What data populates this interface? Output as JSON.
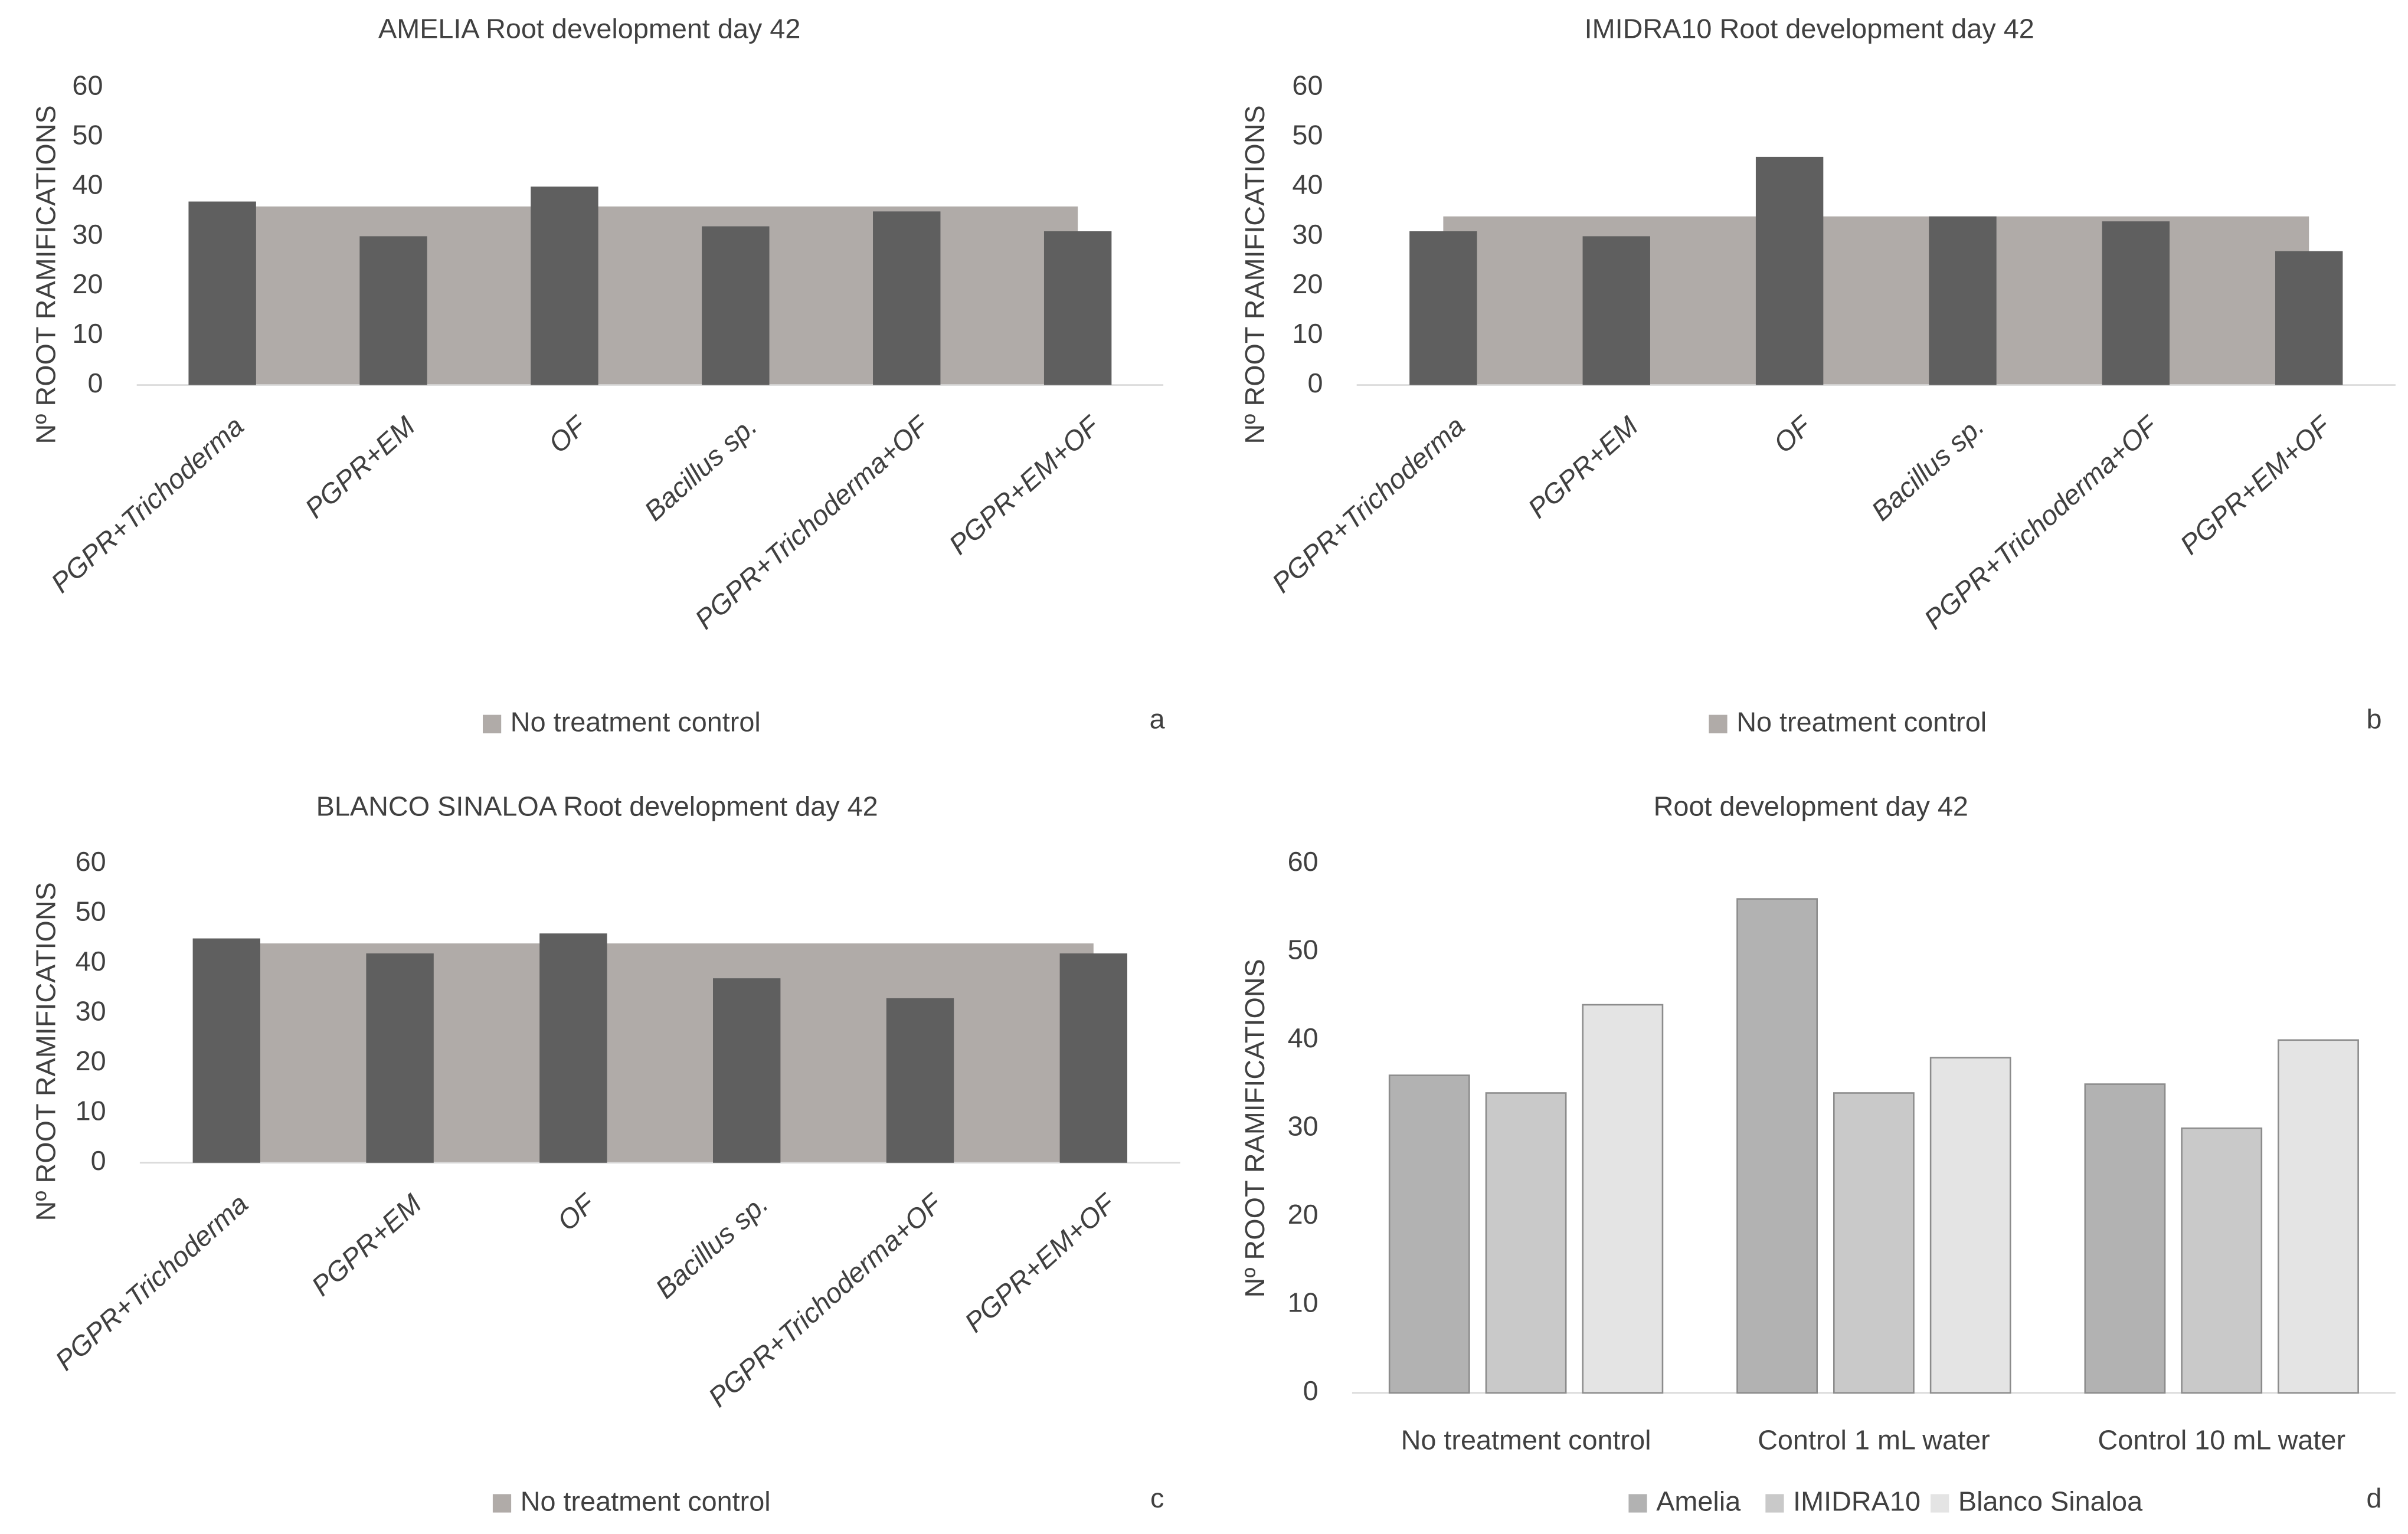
{
  "chart_data": [
    {
      "type": "bar",
      "title": "AMELIA  Root development  day 42",
      "panel_label": "a",
      "y_label": "Nº ROOT RAMIFICATIONS",
      "categories": [
        "PGPR+Trichoderma",
        "PGPR+EM",
        "OF",
        "Bacillus sp.",
        "PGPR+Trichoderma+OF",
        "PGPR+EM+OF"
      ],
      "values": [
        37,
        30,
        40,
        32,
        35,
        31
      ],
      "color": "#5f5f5f",
      "control": {
        "name": "No treatment control",
        "value": 36,
        "color": "#b0aba8"
      },
      "ylim": [
        0,
        60
      ],
      "yticks": [
        0,
        10,
        20,
        30,
        40,
        50,
        60
      ]
    },
    {
      "type": "bar",
      "title": "IMIDRA10  Root development  day 42",
      "panel_label": "b",
      "y_label": "Nº ROOT RAMIFICATIONS",
      "categories": [
        "PGPR+Trichoderma",
        "PGPR+EM",
        "OF",
        "Bacillus sp.",
        "PGPR+Trichoderma+OF",
        "PGPR+EM+OF"
      ],
      "values": [
        31,
        30,
        46,
        34,
        33,
        27
      ],
      "color": "#5f5f5f",
      "control": {
        "name": "No treatment control",
        "value": 34,
        "color": "#b0aba8"
      },
      "ylim": [
        0,
        60
      ],
      "yticks": [
        0,
        10,
        20,
        30,
        40,
        50,
        60
      ]
    },
    {
      "type": "bar",
      "title": "BLANCO  SINALOA  Root development  day 42",
      "panel_label": "c",
      "y_label": "Nº ROOT RAMIFICATIONS",
      "categories": [
        "PGPR+Trichoderma",
        "PGPR+EM",
        "OF",
        "Bacillus sp.",
        "PGPR+Trichoderma+OF",
        "PGPR+EM+OF"
      ],
      "values": [
        45,
        42,
        46,
        37,
        33,
        42
      ],
      "color": "#5f5f5f",
      "control": {
        "name": "No treatment control",
        "value": 44,
        "color": "#b0aba8"
      },
      "ylim": [
        0,
        60
      ],
      "yticks": [
        0,
        10,
        20,
        30,
        40,
        50,
        60
      ]
    },
    {
      "type": "bar",
      "title": "Root development  day 42",
      "panel_label": "d",
      "y_label": "Nº ROOT RAMIFICATIONS",
      "categories": [
        "No treatment control",
        "Control 1 mL water",
        "Control 10 mL water"
      ],
      "series": [
        {
          "name": "Amelia",
          "color": "#b2b2b2",
          "values": [
            36,
            56,
            35
          ]
        },
        {
          "name": "IMIDRA10",
          "color": "#c9c9c9",
          "values": [
            34,
            34,
            30
          ]
        },
        {
          "name": "Blanco Sinaloa",
          "color": "#e4e4e4",
          "values": [
            44,
            38,
            40
          ]
        }
      ],
      "ylim": [
        0,
        60
      ],
      "yticks": [
        0,
        10,
        20,
        30,
        40,
        50,
        60
      ]
    }
  ]
}
